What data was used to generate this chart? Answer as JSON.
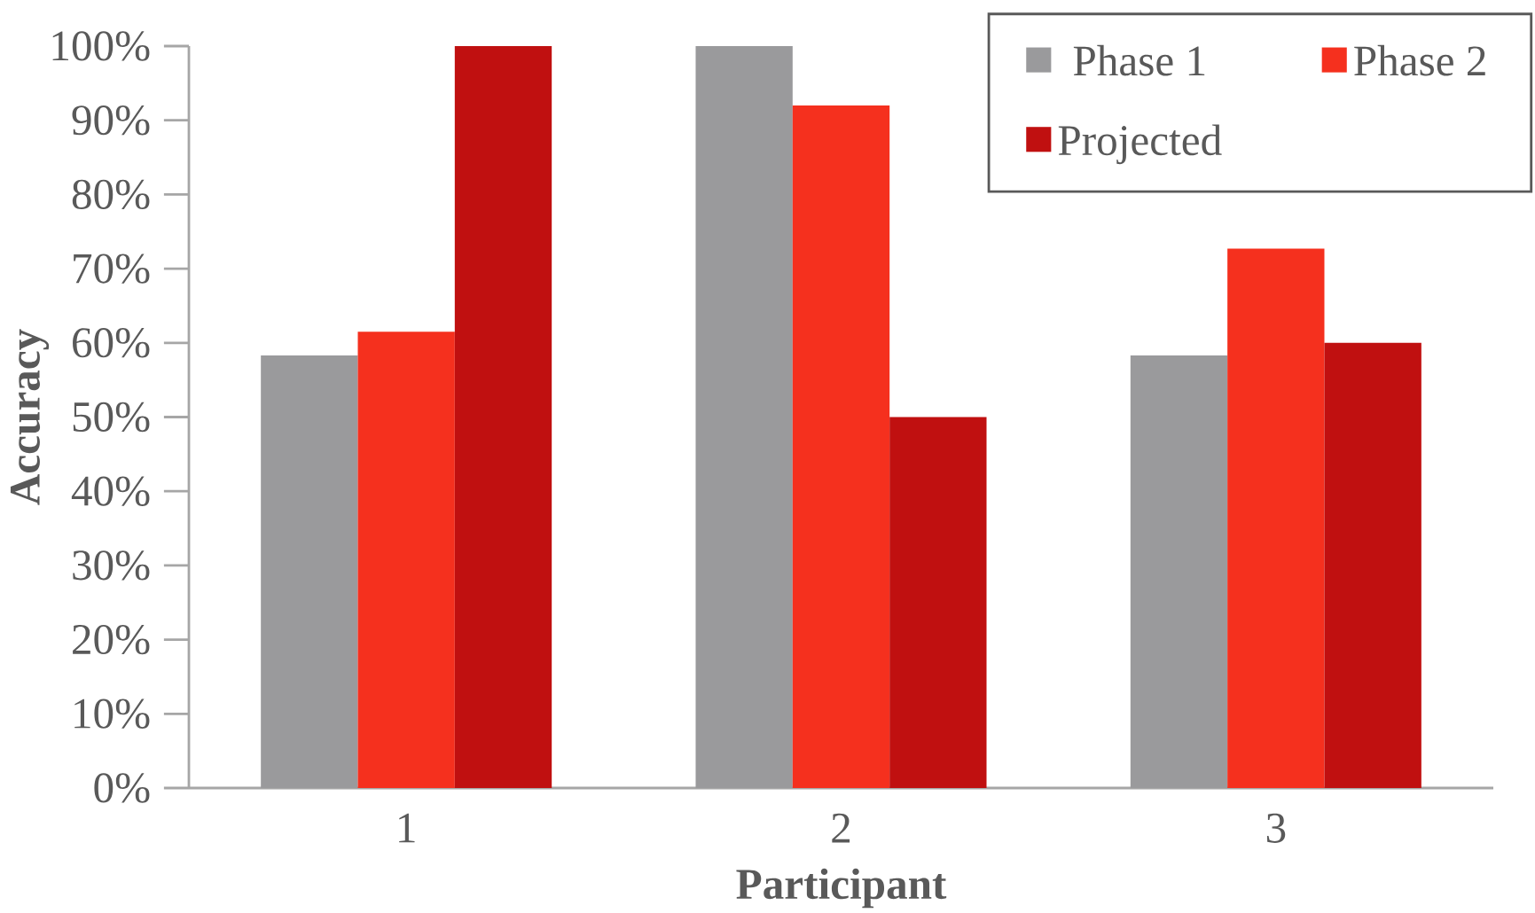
{
  "chart_data": {
    "type": "bar",
    "xlabel": "Participant",
    "ylabel": "Accuracy",
    "categories": [
      "1",
      "2",
      "3"
    ],
    "series": [
      {
        "name": "Phase 1",
        "color": "#9a9a9c",
        "values": [
          58.3,
          100,
          58.3
        ]
      },
      {
        "name": "Phase 2",
        "color": "#f5301e",
        "values": [
          61.5,
          92,
          72.7
        ]
      },
      {
        "name": "Projected",
        "color": "#c01010",
        "values": [
          100,
          50,
          60
        ]
      }
    ],
    "ylim": [
      0,
      100
    ],
    "yticks": [
      {
        "value": 0,
        "label": "0%"
      },
      {
        "value": 10,
        "label": "10%"
      },
      {
        "value": 20,
        "label": "20%"
      },
      {
        "value": 30,
        "label": "30%"
      },
      {
        "value": 40,
        "label": "40%"
      },
      {
        "value": 50,
        "label": "50%"
      },
      {
        "value": 60,
        "label": "60%"
      },
      {
        "value": 70,
        "label": "70%"
      },
      {
        "value": 80,
        "label": "80%"
      },
      {
        "value": 90,
        "label": "90%"
      },
      {
        "value": 100,
        "label": "100%"
      }
    ],
    "grid": false,
    "legend": "top right"
  }
}
